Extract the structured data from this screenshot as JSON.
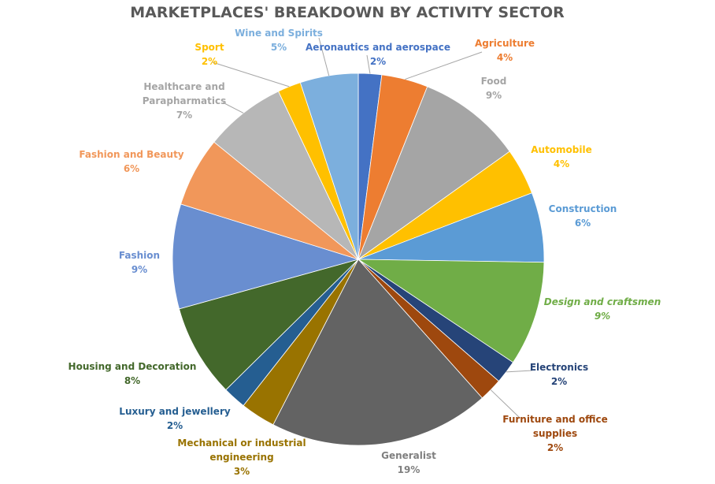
{
  "chart_data": {
    "type": "pie",
    "title": "MARKETPLACES' BREAKDOWN BY ACTIVITY SECTOR",
    "start_angle": "12 o'clock, clockwise",
    "slices": [
      {
        "label": [
          "Aeronautics and aerospace"
        ],
        "value": 2,
        "color": "#4472C4"
      },
      {
        "label": [
          "Agriculture"
        ],
        "value": 4,
        "color": "#ED7D31"
      },
      {
        "label": [
          "Food"
        ],
        "value": 9,
        "color": "#A5A5A5"
      },
      {
        "label": [
          "Automobile"
        ],
        "value": 4,
        "color": "#FFC000"
      },
      {
        "label": [
          "Construction"
        ],
        "value": 6,
        "color": "#5B9BD5"
      },
      {
        "label": [
          "Design and craftsmen"
        ],
        "value": 9,
        "color": "#70AD47"
      },
      {
        "label": [
          "Electronics"
        ],
        "value": 2,
        "color": "#264478"
      },
      {
        "label": [
          "Furniture and office",
          "supplies"
        ],
        "value": 2,
        "color": "#9E480E"
      },
      {
        "label": [
          "Generalist"
        ],
        "value": 19,
        "color": "#636363"
      },
      {
        "label": [
          "Mechanical or industrial",
          "engineering"
        ],
        "value": 3,
        "color": "#997300"
      },
      {
        "label": [
          "Luxury and jewellery"
        ],
        "value": 2,
        "color": "#255E91"
      },
      {
        "label": [
          "Housing and Decoration"
        ],
        "value": 8,
        "color": "#43682B"
      },
      {
        "label": [
          "Fashion"
        ],
        "value": 9,
        "color": "#698ED0"
      },
      {
        "label": [
          "Fashion and Beauty"
        ],
        "value": 6,
        "color": "#F1975A"
      },
      {
        "label": [
          "Healthcare and",
          "Parapharmatics"
        ],
        "value": 7,
        "color": "#B7B7B7"
      },
      {
        "label": [
          "Sport"
        ],
        "value": 2,
        "color": "#FFC000"
      },
      {
        "label": [
          "Wine and Spirits"
        ],
        "value": 5,
        "color": "#7CAFDD"
      }
    ]
  }
}
